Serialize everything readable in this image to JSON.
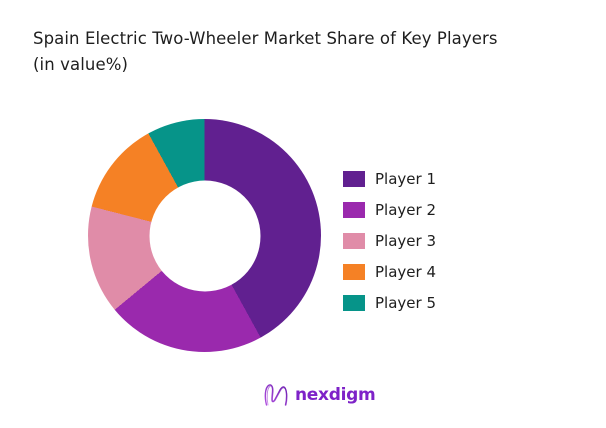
{
  "title": {
    "line1": "Spain Electric Two-Wheeler Market Share of Key Players",
    "line2": "(in value%)",
    "text_color": "#1e1e1e"
  },
  "chart_data": {
    "type": "pie",
    "variant": "donut",
    "title": "Spain Electric Two-Wheeler Market Share of Key Players (in value%)",
    "value_unit": "% of market value",
    "labels": [
      "Player 1",
      "Player 2",
      "Player 3",
      "Player 4",
      "Player 5"
    ],
    "values": [
      42,
      22,
      15,
      13,
      8
    ],
    "colors": [
      "#612090",
      "#9a29ad",
      "#e08ca8",
      "#f58125",
      "#069489"
    ],
    "start_angle_deg": 0,
    "clockwise": true,
    "inner_radius_ratio": 0.478,
    "legend_position": "right",
    "data_labels": false
  },
  "footer": {
    "brand": "nexdigm",
    "brand_color": "#7e22c8",
    "logo_gradient": [
      "#b14fe0",
      "#6d1fb0"
    ]
  }
}
